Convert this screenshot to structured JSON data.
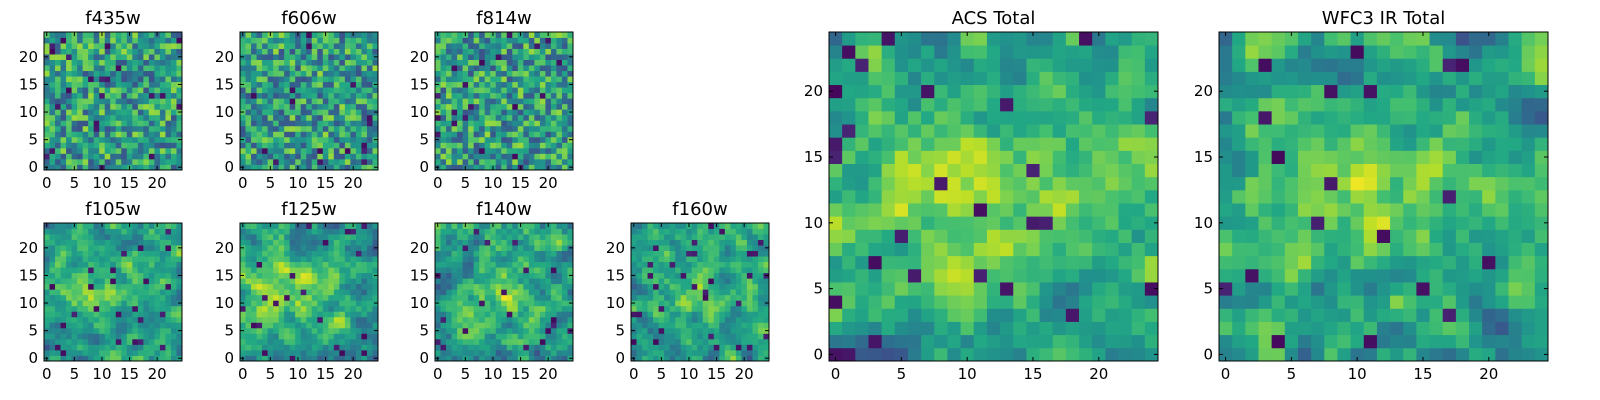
{
  "chart_data": [
    {
      "type": "heatmap",
      "title": "f435w",
      "grid_size": 25,
      "xlim": [
        -0.5,
        24.5
      ],
      "ylim": [
        -0.5,
        24.5
      ],
      "xticks": [
        0,
        5,
        10,
        15,
        20
      ],
      "yticks": [
        0,
        5,
        10,
        15,
        20
      ],
      "colormap": "viridis",
      "pattern": "noise",
      "seed": 11,
      "grid": false,
      "values": []
    },
    {
      "type": "heatmap",
      "title": "f606w",
      "grid_size": 25,
      "xlim": [
        -0.5,
        24.5
      ],
      "ylim": [
        -0.5,
        24.5
      ],
      "xticks": [
        0,
        5,
        10,
        15,
        20
      ],
      "yticks": [
        0,
        5,
        10,
        15,
        20
      ],
      "colormap": "viridis",
      "pattern": "noise",
      "seed": 23,
      "grid": false,
      "values": []
    },
    {
      "type": "heatmap",
      "title": "f814w",
      "grid_size": 25,
      "xlim": [
        -0.5,
        24.5
      ],
      "ylim": [
        -0.5,
        24.5
      ],
      "xticks": [
        0,
        5,
        10,
        15,
        20
      ],
      "yticks": [
        0,
        5,
        10,
        15,
        20
      ],
      "colormap": "viridis",
      "pattern": "noise",
      "seed": 37,
      "grid": false,
      "values": []
    },
    {
      "type": "heatmap",
      "title": "f105w",
      "grid_size": 25,
      "xlim": [
        -0.5,
        24.5
      ],
      "ylim": [
        -0.5,
        24.5
      ],
      "xticks": [
        0,
        5,
        10,
        15,
        20
      ],
      "yticks": [
        0,
        5,
        10,
        15,
        20
      ],
      "colormap": "viridis",
      "pattern": "band",
      "seed": 41,
      "grid": false,
      "values": []
    },
    {
      "type": "heatmap",
      "title": "f125w",
      "grid_size": 25,
      "xlim": [
        -0.5,
        24.5
      ],
      "ylim": [
        -0.5,
        24.5
      ],
      "xticks": [
        0,
        5,
        10,
        15,
        20
      ],
      "yticks": [
        0,
        5,
        10,
        15,
        20
      ],
      "colormap": "viridis",
      "pattern": "band",
      "seed": 53,
      "grid": false,
      "values": []
    },
    {
      "type": "heatmap",
      "title": "f140w",
      "grid_size": 25,
      "xlim": [
        -0.5,
        24.5
      ],
      "ylim": [
        -0.5,
        24.5
      ],
      "xticks": [
        0,
        5,
        10,
        15,
        20
      ],
      "yticks": [
        0,
        5,
        10,
        15,
        20
      ],
      "colormap": "viridis",
      "pattern": "blob",
      "seed": 67,
      "grid": false,
      "values": []
    },
    {
      "type": "heatmap",
      "title": "f160w",
      "grid_size": 25,
      "xlim": [
        -0.5,
        24.5
      ],
      "ylim": [
        -0.5,
        24.5
      ],
      "xticks": [
        0,
        5,
        10,
        15,
        20
      ],
      "yticks": [
        0,
        5,
        10,
        15,
        20
      ],
      "colormap": "viridis",
      "pattern": "blob",
      "seed": 79,
      "grid": false,
      "values": []
    },
    {
      "type": "heatmap",
      "title": "ACS Total",
      "grid_size": 25,
      "xlim": [
        -0.5,
        24.5
      ],
      "ylim": [
        -0.5,
        24.5
      ],
      "xticks": [
        0,
        5,
        10,
        15,
        20
      ],
      "yticks": [
        0,
        5,
        10,
        15,
        20
      ],
      "colormap": "viridis",
      "pattern": "band",
      "seed": 97,
      "grid": false,
      "values": []
    },
    {
      "type": "heatmap",
      "title": "WFC3 IR Total",
      "grid_size": 25,
      "xlim": [
        -0.5,
        24.5
      ],
      "ylim": [
        -0.5,
        24.5
      ],
      "xticks": [
        0,
        5,
        10,
        15,
        20
      ],
      "yticks": [
        0,
        5,
        10,
        15,
        20
      ],
      "colormap": "viridis",
      "pattern": "band",
      "seed": 113,
      "grid": false,
      "values": []
    }
  ],
  "colors": {
    "viridis": [
      "#440154",
      "#482475",
      "#414487",
      "#355f8d",
      "#2a788e",
      "#21918c",
      "#22a884",
      "#44bf70",
      "#7ad151",
      "#bddf26",
      "#fde725"
    ]
  }
}
